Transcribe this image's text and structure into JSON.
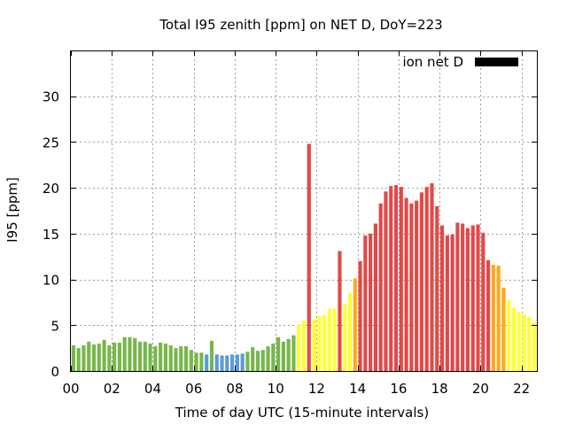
{
  "chart_data": {
    "type": "bar",
    "title": "Total I95 zenith [ppm] on NET D, DoY=223",
    "xlabel": "Time of day UTC (15-minute intervals)",
    "ylabel": "I95 [ppm]",
    "xlim": [
      0,
      22.75
    ],
    "ylim": [
      0,
      35
    ],
    "xticks": [
      "00",
      "02",
      "04",
      "06",
      "08",
      "10",
      "12",
      "14",
      "16",
      "18",
      "20",
      "22"
    ],
    "yticks": [
      "0",
      "5",
      "10",
      "15",
      "20",
      "25",
      "30"
    ],
    "grid": true,
    "legend": {
      "label": "ion net D",
      "color": "#000000",
      "position": "top-right"
    },
    "bar_interval_hours": 0.25,
    "values": [
      2.8,
      2.5,
      2.8,
      3.2,
      2.9,
      3.0,
      3.4,
      2.8,
      3.1,
      3.1,
      3.7,
      3.7,
      3.6,
      3.2,
      3.2,
      3.0,
      2.7,
      3.1,
      3.0,
      2.8,
      2.5,
      2.7,
      2.7,
      2.3,
      2.0,
      2.0,
      1.8,
      3.3,
      1.8,
      1.7,
      1.7,
      1.8,
      1.8,
      1.9,
      2.1,
      2.6,
      2.2,
      2.3,
      2.7,
      3.0,
      3.7,
      3.2,
      3.5,
      3.9,
      5.1,
      5.5,
      24.8,
      5.6,
      6.0,
      6.1,
      6.8,
      6.8,
      13.1,
      7.3,
      8.5,
      10.1,
      12.0,
      14.8,
      15.0,
      16.1,
      18.3,
      19.6,
      20.2,
      20.3,
      20.1,
      18.9,
      18.3,
      18.6,
      19.5,
      20.1,
      20.5,
      18.0,
      15.9,
      14.8,
      14.9,
      16.2,
      16.1,
      15.6,
      15.9,
      16.0,
      15.1,
      12.1,
      11.6,
      11.5,
      9.1,
      7.7,
      6.9,
      6.4,
      6.2,
      5.9,
      5.3
    ],
    "color_scale": [
      {
        "max": 2.0,
        "color": "#5b9bd5"
      },
      {
        "max": 5.0,
        "color": "#77b74a"
      },
      {
        "max": 9.0,
        "color": "#ffff33"
      },
      {
        "max": 12.0,
        "color": "#ffa81e"
      },
      {
        "max": 100,
        "color": "#e34848"
      }
    ]
  }
}
